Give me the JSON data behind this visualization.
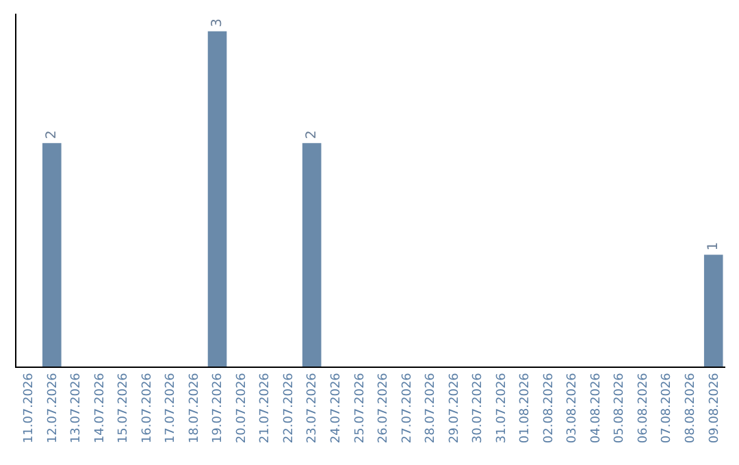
{
  "chart_data": {
    "type": "bar",
    "categories": [
      "11.07.2026",
      "12.07.2026",
      "13.07.2026",
      "14.07.2026",
      "15.07.2026",
      "16.07.2026",
      "17.07.2026",
      "18.07.2026",
      "19.07.2026",
      "20.07.2026",
      "21.07.2026",
      "22.07.2026",
      "23.07.2026",
      "24.07.2026",
      "25.07.2026",
      "26.07.2026",
      "27.07.2026",
      "28.07.2026",
      "29.07.2026",
      "30.07.2026",
      "31.07.2026",
      "01.08.2026",
      "02.08.2026",
      "03.08.2026",
      "04.08.2026",
      "05.08.2026",
      "06.08.2026",
      "07.08.2026",
      "08.08.2026",
      "09.08.2026"
    ],
    "values": [
      0,
      2,
      0,
      0,
      0,
      0,
      0,
      0,
      3,
      0,
      0,
      0,
      2,
      0,
      0,
      0,
      0,
      0,
      0,
      0,
      0,
      0,
      0,
      0,
      0,
      0,
      0,
      0,
      0,
      1
    ],
    "value_labels": [
      null,
      "2",
      null,
      null,
      null,
      null,
      null,
      null,
      "3",
      null,
      null,
      null,
      "2",
      null,
      null,
      null,
      null,
      null,
      null,
      null,
      null,
      null,
      null,
      null,
      null,
      null,
      null,
      null,
      null,
      "1"
    ],
    "color": "#6a8aaa",
    "tick_labels": "x"
  }
}
